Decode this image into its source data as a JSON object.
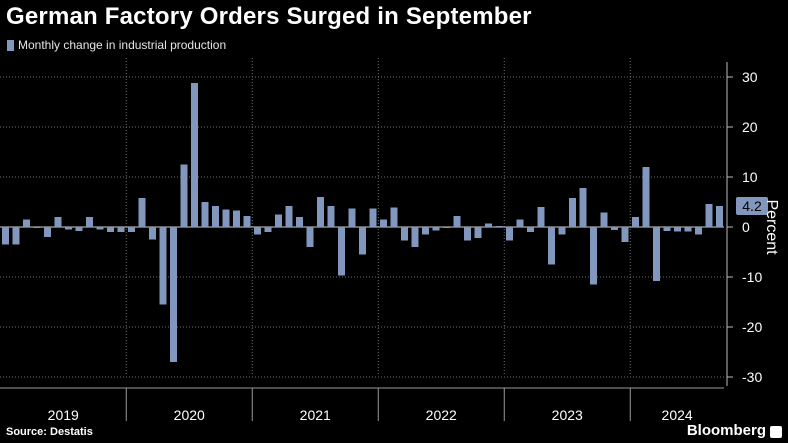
{
  "title": "German Factory Orders Surged in September",
  "legend": {
    "label": "Monthly change in industrial production",
    "color": "#8197bd"
  },
  "source": "Source: Destatis",
  "brand": "Bloomberg",
  "colors": {
    "background": "#000000",
    "bar": "#8197bd",
    "grid": "#6e6e6e",
    "text": "#ffffff",
    "callout_bg": "#8197bd"
  },
  "chart_data": {
    "type": "bar",
    "ylabel": "Percent",
    "ylim": [
      -30,
      30
    ],
    "yticks": [
      30,
      20,
      10,
      0,
      -10,
      -20,
      -30
    ],
    "year_labels": [
      "2019",
      "2020",
      "2021",
      "2022",
      "2023",
      "2024"
    ],
    "grid": "dotted vertical at year boundaries and dotted horizontal at y-ticks",
    "last_value_label": "4.2",
    "series": [
      {
        "name": "Monthly change in industrial production",
        "x": [
          "2019-01",
          "2019-02",
          "2019-03",
          "2019-04",
          "2019-05",
          "2019-06",
          "2019-07",
          "2019-08",
          "2019-09",
          "2019-10",
          "2019-11",
          "2019-12",
          "2020-01",
          "2020-02",
          "2020-03",
          "2020-04",
          "2020-05",
          "2020-06",
          "2020-07",
          "2020-08",
          "2020-09",
          "2020-10",
          "2020-11",
          "2020-12",
          "2021-01",
          "2021-02",
          "2021-03",
          "2021-04",
          "2021-05",
          "2021-06",
          "2021-07",
          "2021-08",
          "2021-09",
          "2021-10",
          "2021-11",
          "2021-12",
          "2022-01",
          "2022-02",
          "2022-03",
          "2022-04",
          "2022-05",
          "2022-06",
          "2022-07",
          "2022-08",
          "2022-09",
          "2022-10",
          "2022-11",
          "2022-12",
          "2023-01",
          "2023-02",
          "2023-03",
          "2023-04",
          "2023-05",
          "2023-06",
          "2023-07",
          "2023-08",
          "2023-09",
          "2023-10",
          "2023-11",
          "2023-12",
          "2024-01",
          "2024-02",
          "2024-03",
          "2024-04",
          "2024-05",
          "2024-06",
          "2024-07",
          "2024-08",
          "2024-09"
        ],
        "values": [
          -3.5,
          -3.5,
          1.5,
          -0.2,
          -2.0,
          2.0,
          -0.5,
          -0.8,
          2.0,
          -0.5,
          -1.0,
          -1.0,
          -1.0,
          5.8,
          -2.5,
          -15.5,
          -27.0,
          12.5,
          28.8,
          5.0,
          4.2,
          3.5,
          3.3,
          2.2,
          -1.5,
          -1.0,
          2.5,
          4.2,
          2.0,
          -4.0,
          6.0,
          4.2,
          -9.7,
          3.7,
          -5.5,
          3.7,
          1.5,
          3.9,
          -2.7,
          -4.0,
          -1.5,
          -0.7,
          -0.2,
          2.2,
          -2.7,
          -2.2,
          0.7,
          0.2,
          -2.7,
          1.5,
          -1.0,
          4.0,
          -7.5,
          -1.5,
          5.8,
          7.8,
          -11.5,
          2.9,
          -0.6,
          -3.0,
          2.0,
          12.0,
          -10.8,
          -0.8,
          -0.9,
          -0.9,
          -1.5,
          4.6,
          4.2
        ]
      }
    ]
  }
}
